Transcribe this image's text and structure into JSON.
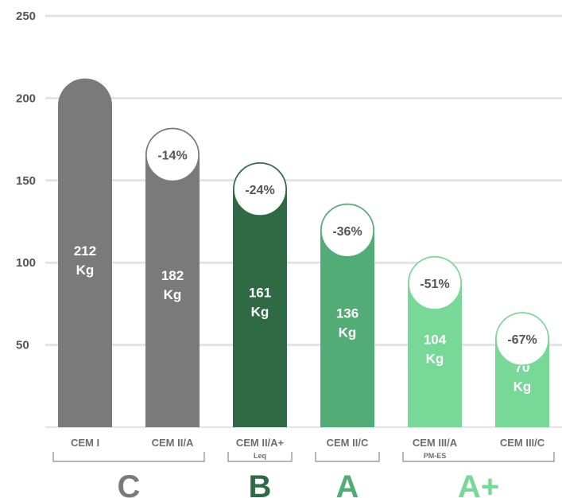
{
  "chart_data": {
    "type": "bar",
    "ylim": [
      0,
      250
    ],
    "yticks": [
      50,
      100,
      150,
      200,
      250
    ],
    "grid": true,
    "categories": [
      "CEM I",
      "CEM II/A",
      "CEM II/A+",
      "CEM II/C",
      "CEM III/A",
      "CEM III/C"
    ],
    "sublabels": [
      "",
      "",
      "Leq",
      "",
      "PM-ES",
      ""
    ],
    "values": [
      212,
      182,
      161,
      136,
      104,
      70
    ],
    "value_labels": [
      "212",
      "182",
      "161",
      "136",
      "104",
      "70"
    ],
    "unit": "Kg",
    "reductions": [
      "",
      "-14%",
      "-24%",
      "-36%",
      "-51%",
      "-67%"
    ],
    "bar_colors": [
      "#7a7a7a",
      "#7a7a7a",
      "#2e6b45",
      "#52ac76",
      "#77d897",
      "#77d897"
    ],
    "classes": [
      {
        "label": "C",
        "from": 0,
        "to": 1,
        "color": "#7a7a7a"
      },
      {
        "label": "B",
        "from": 2,
        "to": 2,
        "color": "#2e6b45"
      },
      {
        "label": "A",
        "from": 3,
        "to": 3,
        "color": "#52ac76"
      },
      {
        "label": "A+",
        "from": 4,
        "to": 5,
        "color": "#77d897"
      }
    ]
  }
}
